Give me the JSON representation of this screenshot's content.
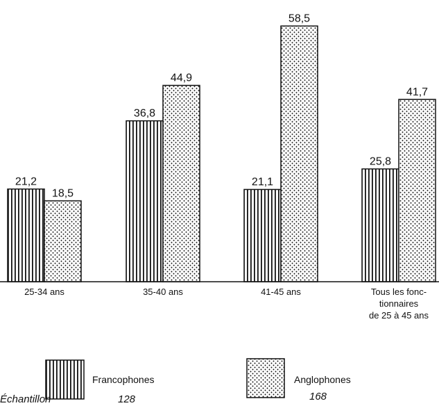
{
  "chart_data": {
    "type": "bar",
    "categories": [
      [
        "25-34 ans"
      ],
      [
        "35-40 ans"
      ],
      [
        "41-45 ans"
      ],
      [
        "Tous les fonc-",
        "tionnaires",
        "de 25 à 45 ans"
      ]
    ],
    "series": [
      {
        "name": "Francophones",
        "values": [
          21.2,
          36.8,
          21.1,
          25.8
        ],
        "labels": [
          "21,2",
          "36,8",
          "21,1",
          "25,8"
        ],
        "pattern": "vertical-stripes"
      },
      {
        "name": "Anglophones",
        "values": [
          18.5,
          44.9,
          58.5,
          41.7
        ],
        "labels": [
          "18,5",
          "44,9",
          "58,5",
          "41,7"
        ],
        "pattern": "dots"
      }
    ],
    "ylim": [
      0,
      60
    ],
    "axes_shown": false,
    "grid": false,
    "legend": "bottom",
    "colors": {
      "ink": "#111111",
      "background": "#ffffff"
    }
  },
  "sample": {
    "label": "Échantillon",
    "values": [
      "128",
      "168"
    ]
  }
}
